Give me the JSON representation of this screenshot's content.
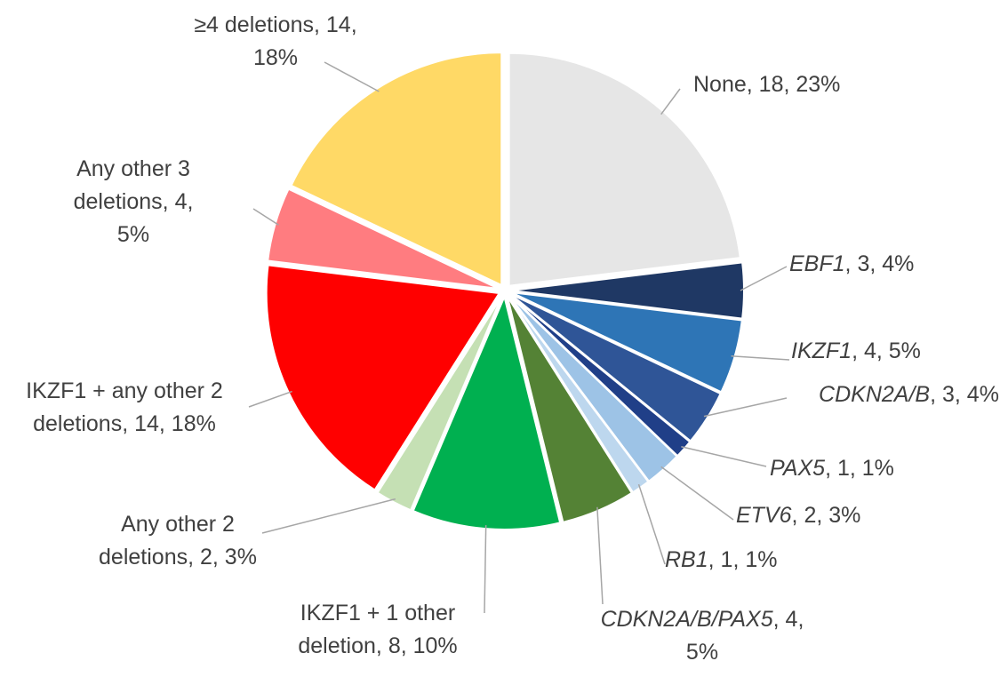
{
  "chart_data": {
    "type": "pie",
    "categories": [
      "None",
      "EBF1",
      "IKZF1",
      "CDKN2A/B",
      "PAX5",
      "ETV6",
      "RB1",
      "CDKN2A/B/PAX5",
      "IKZF1 + 1 other deletion",
      "Any other 2 deletions",
      "IKZF1 + any other 2 deletions",
      "Any other 3 deletions",
      "≥4 deletions"
    ],
    "values": [
      18,
      3,
      4,
      3,
      1,
      2,
      1,
      4,
      8,
      2,
      14,
      4,
      14
    ],
    "value_labels": [
      "18, 23%",
      "3, 4%",
      "4, 5%",
      "3, 4%",
      "1, 1%",
      "2, 3%",
      "1, 1%",
      "4, 5%",
      "8, 10%",
      "2, 3%",
      "14, 18%",
      "4, 5%",
      "14, 18%"
    ],
    "label_separator": ", ",
    "italic": [
      false,
      true,
      true,
      true,
      true,
      true,
      true,
      true,
      false,
      false,
      false,
      false,
      false
    ],
    "colors": [
      "#e6e6e6",
      "#1f3864",
      "#2e75b6",
      "#2f5597",
      "#203f88",
      "#9dc3e6",
      "#bdd7ee",
      "#548235",
      "#00b050",
      "#c5e0b4",
      "#ff0000",
      "#ff7c80",
      "#ffd966"
    ]
  }
}
